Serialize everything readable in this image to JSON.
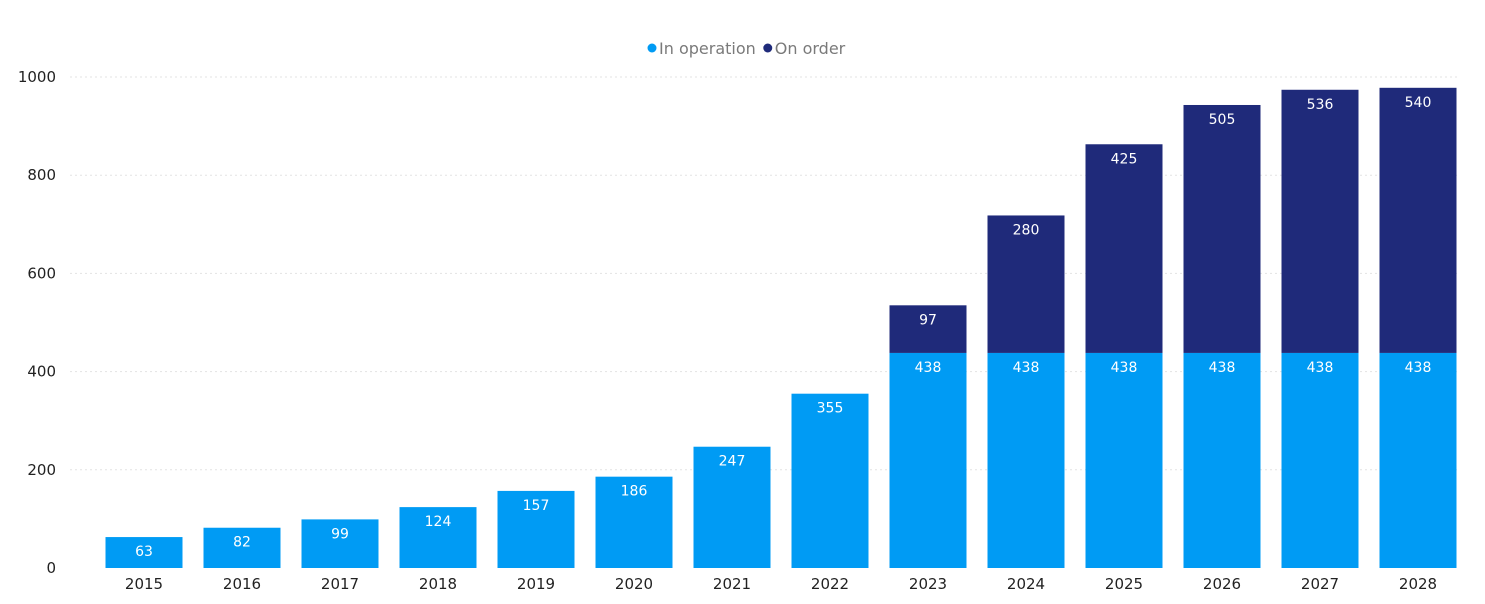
{
  "chart_data": {
    "type": "bar",
    "stacked": true,
    "categories": [
      "2015",
      "2016",
      "2017",
      "2018",
      "2019",
      "2020",
      "2021",
      "2022",
      "2023",
      "2024",
      "2025",
      "2026",
      "2027",
      "2028"
    ],
    "series": [
      {
        "name": "In operation",
        "color": "#009bf4",
        "values": [
          63,
          82,
          99,
          124,
          157,
          186,
          247,
          355,
          438,
          438,
          438,
          438,
          438,
          438
        ]
      },
      {
        "name": "On order",
        "color": "#1f2a7a",
        "values": [
          null,
          null,
          null,
          null,
          null,
          null,
          null,
          null,
          97,
          280,
          425,
          505,
          536,
          540
        ]
      }
    ],
    "ylim": [
      0,
      1000
    ],
    "yticks": [
      0,
      200,
      400,
      600,
      800,
      1000
    ],
    "legend_position": "top-center",
    "grid": true
  }
}
